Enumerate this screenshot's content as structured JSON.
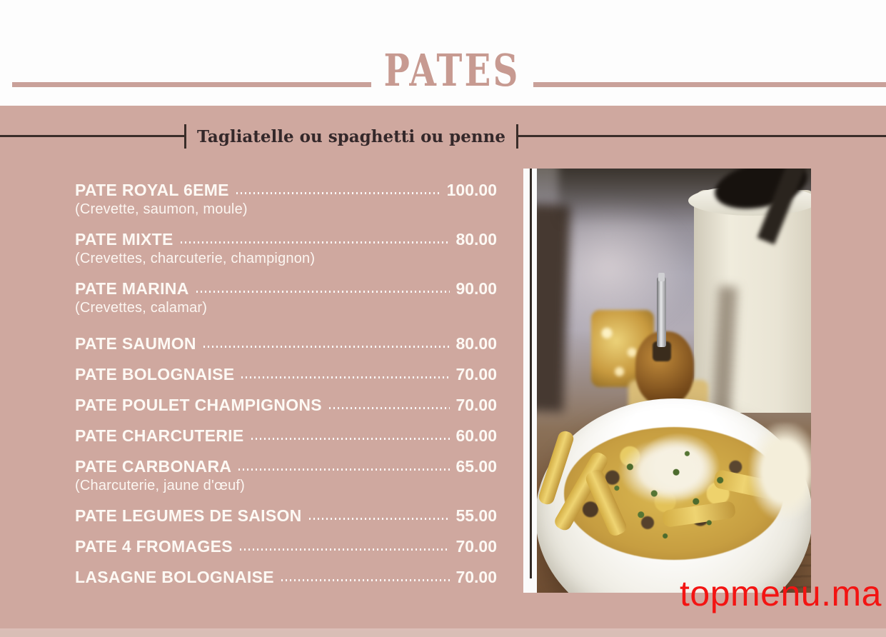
{
  "page": {
    "title": "PATES",
    "subtitle": "Tagliatelle ou spaghetti ou penne",
    "watermark": "topmenu.ma"
  },
  "menu": {
    "items": [
      {
        "name": "PATE ROYAL 6EME",
        "description": "(Crevette, saumon, moule)",
        "price": "100.00"
      },
      {
        "name": "PATE MIXTE",
        "description": "(Crevettes, charcuterie, champignon)",
        "price": "80.00"
      },
      {
        "name": "PATE MARINA",
        "description": "(Crevettes, calamar)",
        "price": "90.00"
      },
      {
        "name": "PATE SAUMON",
        "description": "",
        "price": "80.00"
      },
      {
        "name": "PATE BOLOGNAISE",
        "description": "",
        "price": "70.00"
      },
      {
        "name": "PATE POULET CHAMPIGNONS",
        "description": "",
        "price": "70.00"
      },
      {
        "name": "PATE CHARCUTERIE",
        "description": "",
        "price": "60.00"
      },
      {
        "name": "PATE CARBONARA",
        "description": "(Charcuterie, jaune d'œuf)",
        "price": "65.00"
      },
      {
        "name": "PATE LEGUMES DE SAISON",
        "description": "",
        "price": "55.00"
      },
      {
        "name": "PATE 4 FROMAGES",
        "description": "",
        "price": "70.00"
      },
      {
        "name": "LASAGNE BOLOGNAISE",
        "description": "",
        "price": "70.00"
      }
    ]
  },
  "photo": {
    "caption": "tagliatelle-pasta-bowl-photo"
  },
  "colors": {
    "background": "#cfa89f",
    "title": "#c79a91",
    "rule_rose": "#c9a19a",
    "dark_rule": "#3a2d29",
    "menu_text": "#fdf9f4",
    "watermark_red": "#f31412",
    "bottom_strip": "#d9beb6"
  }
}
